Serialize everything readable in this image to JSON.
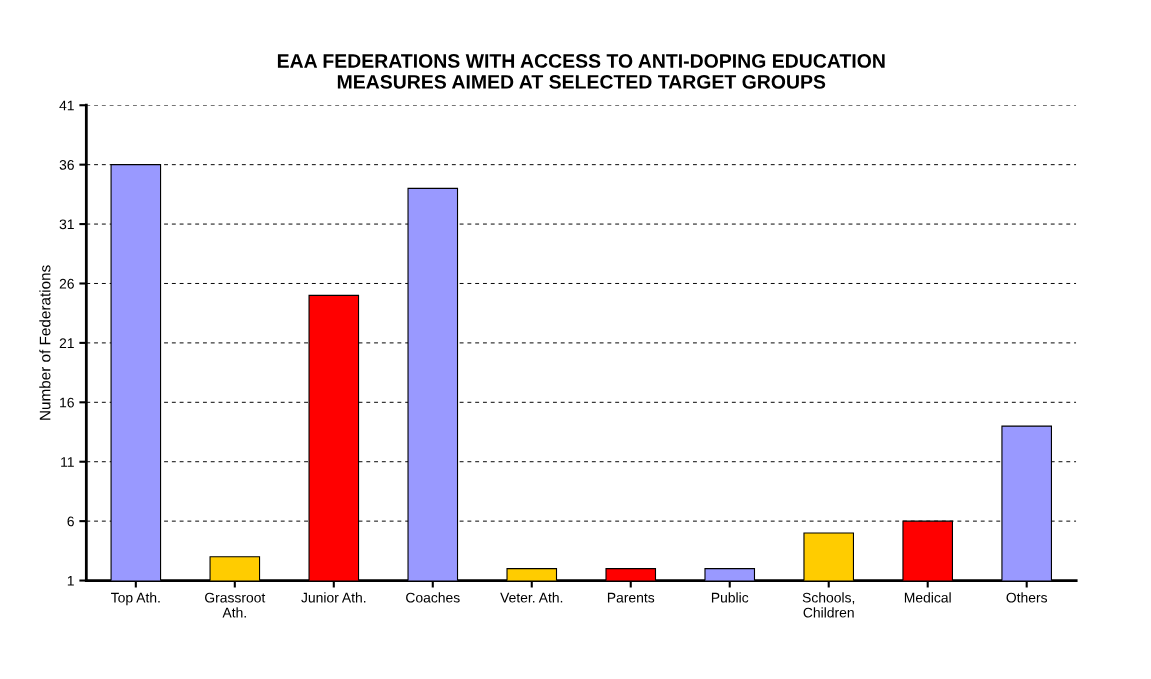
{
  "chart_data": {
    "type": "bar",
    "title": "EAA FEDERATIONS WITH ACCESS TO ANTI-DOPING EDUCATION\nMEASURES AIMED AT SELECTED TARGET GROUPS",
    "ylabel": "Number of Federations",
    "categories": [
      "Top Ath.",
      "Grassroot\nAth.",
      "Junior Ath.",
      "Coaches",
      "Veter. Ath.",
      "Parents",
      "Public",
      "Schools,\nChildren",
      "Medical",
      "Others"
    ],
    "values": [
      36,
      3,
      25,
      34,
      2,
      2,
      2,
      5,
      6,
      14
    ],
    "colors": [
      "#9999ff",
      "#ffcc00",
      "#ff0000",
      "#9999ff",
      "#ffcc00",
      "#ff0000",
      "#9999ff",
      "#ffcc00",
      "#ff0000",
      "#9999ff"
    ],
    "ylim": [
      1,
      41
    ],
    "yticks": [
      1,
      6,
      11,
      16,
      21,
      26,
      31,
      36,
      41
    ],
    "grid": "y",
    "legend": false
  }
}
